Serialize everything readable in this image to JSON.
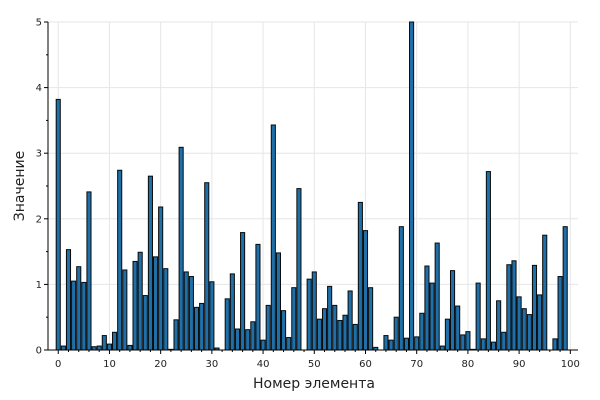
{
  "chart_data": {
    "type": "bar",
    "title": "",
    "xlabel": "Номер элемента",
    "ylabel": "Значение",
    "xlim": [
      -2,
      101.5
    ],
    "ylim": [
      0,
      5
    ],
    "xticks": [
      0,
      10,
      20,
      30,
      40,
      50,
      60,
      70,
      80,
      90,
      100
    ],
    "yticks": [
      0,
      1,
      2,
      3,
      4,
      5
    ],
    "grid": true,
    "bar_color": "#1f6fa8",
    "edge_color": "#0a0a0a",
    "x": [
      0,
      1,
      2,
      3,
      4,
      5,
      6,
      7,
      8,
      9,
      10,
      11,
      12,
      13,
      14,
      15,
      16,
      17,
      18,
      19,
      20,
      21,
      22,
      23,
      24,
      25,
      26,
      27,
      28,
      29,
      30,
      31,
      32,
      33,
      34,
      35,
      36,
      37,
      38,
      39,
      40,
      41,
      42,
      43,
      44,
      45,
      46,
      47,
      48,
      49,
      50,
      51,
      52,
      53,
      54,
      55,
      56,
      57,
      58,
      59,
      60,
      61,
      62,
      63,
      64,
      65,
      66,
      67,
      68,
      69,
      70,
      71,
      72,
      73,
      74,
      75,
      76,
      77,
      78,
      79,
      80,
      81,
      82,
      83,
      84,
      85,
      86,
      87,
      88,
      89,
      90,
      91,
      92,
      93,
      94,
      95,
      96,
      97,
      98,
      99
    ],
    "values": [
      3.82,
      0.06,
      1.53,
      1.05,
      1.27,
      1.03,
      2.41,
      0.05,
      0.06,
      0.22,
      0.09,
      0.27,
      2.74,
      1.22,
      0.07,
      1.35,
      1.49,
      0.83,
      2.65,
      1.42,
      2.18,
      1.24,
      0.01,
      0.46,
      3.09,
      1.19,
      1.12,
      0.65,
      0.71,
      2.55,
      1.04,
      0.03,
      0.0,
      0.78,
      1.16,
      0.32,
      1.79,
      0.31,
      0.43,
      1.61,
      0.15,
      0.68,
      3.43,
      1.48,
      0.6,
      0.19,
      0.95,
      2.46,
      0.0,
      1.08,
      1.19,
      0.47,
      0.63,
      0.97,
      0.68,
      0.45,
      0.53,
      0.9,
      0.39,
      2.25,
      1.82,
      0.95,
      0.04,
      0.0,
      0.22,
      0.15,
      0.5,
      1.88,
      0.18,
      5.0,
      0.2,
      0.56,
      1.28,
      1.02,
      1.63,
      0.06,
      0.47,
      1.21,
      0.67,
      0.23,
      0.28,
      0.01,
      1.02,
      0.17,
      2.72,
      0.12,
      0.75,
      0.27,
      1.3,
      1.36,
      0.81,
      0.63,
      0.54,
      1.29,
      0.84,
      1.75,
      0.0,
      0.17,
      1.12,
      1.88
    ]
  }
}
